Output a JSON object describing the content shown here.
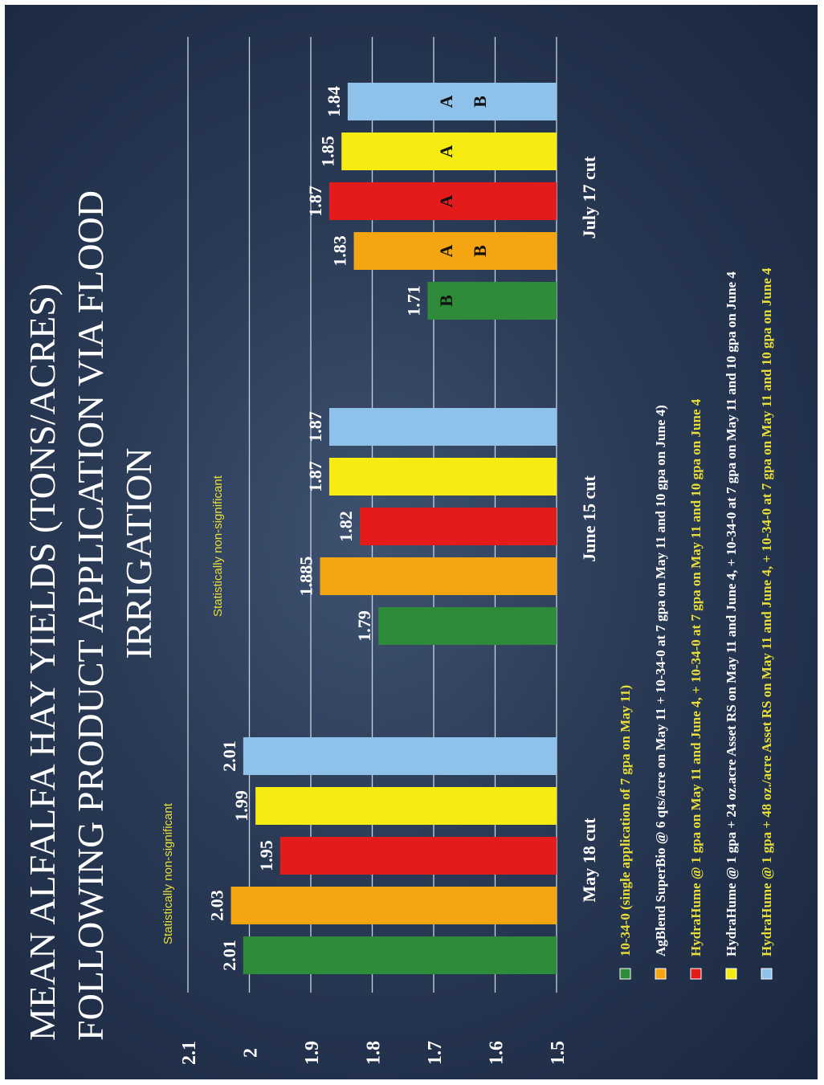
{
  "title": {
    "line1": "MEAN ALFALFA HAY YIELDS (TONS/ACRES)",
    "line2": "FOLLOWING PRODUCT APPLICATION VIA FLOOD",
    "line3": "IRRIGATION"
  },
  "notes": {
    "may": "Statistically non-significant",
    "june": "Statistically non-significant"
  },
  "chart_data": {
    "type": "bar",
    "orientation": "vertical bars, slide rotated 90° counter-clockwise",
    "categories": [
      "May 18 cut",
      "June 15 cut",
      "July 17 cut"
    ],
    "ylim": [
      1.5,
      2.1
    ],
    "yticks": [
      "1.5",
      "1.6",
      "1.7",
      "1.8",
      "1.9",
      "2",
      "2.1"
    ],
    "grid": true,
    "series": [
      {
        "name": "10-34-0 (single application of 7 gpa on May 11)",
        "color": "#2e8b3a",
        "legend_text_color": "#e8df3a",
        "values": [
          2.01,
          1.79,
          1.71
        ],
        "labels": [
          "2.01",
          "1.79",
          "1.71"
        ],
        "letters": [
          "",
          "",
          "B"
        ]
      },
      {
        "name": "AgBlend SuperBio @ 6 qts/acre on May 11 + 10-34-0 at 7 gpa on May 11 and 10 gpa on June 4)",
        "color": "#f5a512",
        "legend_text_color": "#ffffff",
        "values": [
          2.03,
          1.885,
          1.83
        ],
        "labels": [
          "2.03",
          "1.885",
          "1.83"
        ],
        "letters": [
          "",
          "",
          "A B"
        ]
      },
      {
        "name": "HydraHume @ 1 gpa on May 11 and June 4, + 10-34-0 at 7 gpa on May 11 and 10 gpa on June 4",
        "color": "#e31b1b",
        "legend_text_color": "#e8df3a",
        "values": [
          1.95,
          1.82,
          1.87
        ],
        "labels": [
          "1.95",
          "1.82",
          "1.87"
        ],
        "letters": [
          "",
          "",
          "A"
        ]
      },
      {
        "name": "HydraHume @ 1 gpa + 24 oz.acre Asset RS on May 11 and June 4, + 10-34-0 at 7 gpa on May 11 and 10 gpa on June 4",
        "color": "#f7ec12",
        "legend_text_color": "#ffffff",
        "values": [
          1.99,
          1.87,
          1.85
        ],
        "labels": [
          "1.99",
          "1.87",
          "1.85"
        ],
        "letters": [
          "",
          "",
          "A"
        ]
      },
      {
        "name": "HydraHume @ 1 gpa + 48 oz./acre Asset RS on May 11 and June 4, + 10-34-0 at 7 gpa on May 11 and 10 gpa on June 4",
        "color": "#8ec2ea",
        "legend_text_color": "#e8df3a",
        "values": [
          2.01,
          1.87,
          1.84
        ],
        "labels": [
          "2.01",
          "1.87",
          "1.84"
        ],
        "letters": [
          "",
          "",
          "A B"
        ]
      }
    ]
  }
}
